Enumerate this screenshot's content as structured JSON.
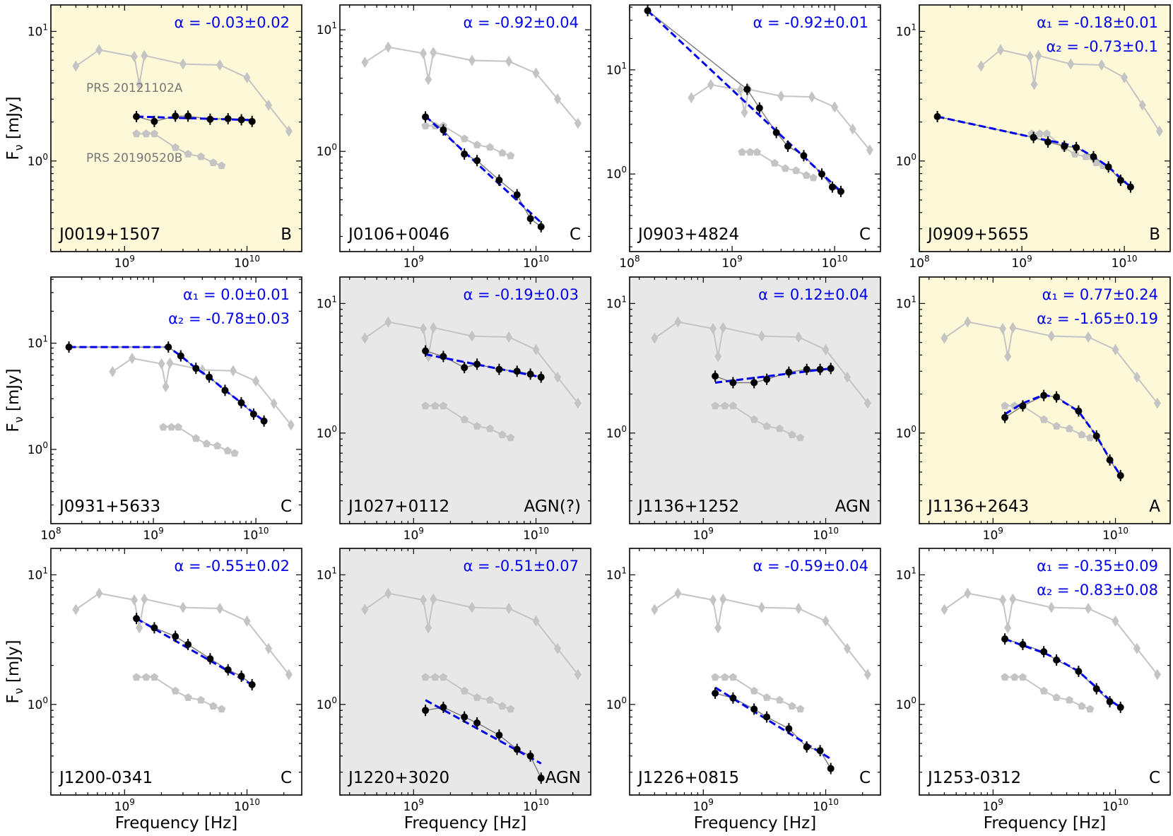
{
  "figure": {
    "xlabel": "Frequency [Hz]",
    "ylabel": "F",
    "ylabel_sub": "ν",
    "ylabel_unit": " [mJy]",
    "prs_labels": [
      "PRS 20121102A",
      "PRS 20190520B"
    ]
  },
  "chart_data": {
    "type": "line",
    "xscale": "log",
    "yscale": "log",
    "xlabel": "Frequency [Hz]",
    "ylabel": "Fν [mJy]",
    "colors": {
      "data": "#000000",
      "fit": "#0000ee",
      "reference": "#c4c4c4",
      "background_yellow": "#fdf8d8",
      "background_gray": "#e8e8e8",
      "background_white": "#ffffff"
    },
    "reference_series": [
      {
        "name": "PRS 20121102A",
        "marker": "diamond",
        "x": [
          400000000.0,
          620000000.0,
          1200000000.0,
          1320000000.0,
          1450000000.0,
          3000000000.0,
          6000000000.0,
          10000000000.0,
          15000000000.0,
          22000000000.0
        ],
        "y": [
          5.4,
          7.2,
          6.4,
          3.9,
          6.5,
          5.6,
          5.5,
          4.4,
          2.7,
          1.7
        ]
      },
      {
        "name": "PRS 20190520B",
        "marker": "pentagon",
        "x": [
          1250000000.0,
          1500000000.0,
          1750000000.0,
          2600000000.0,
          3300000000.0,
          4200000000.0,
          5300000000.0,
          6200000000.0
        ],
        "y": [
          1.62,
          1.62,
          1.62,
          1.27,
          1.13,
          1.08,
          0.97,
          0.92
        ]
      }
    ],
    "panels": [
      {
        "name": "J0019+1507",
        "class": "B",
        "bg": "yellow",
        "xlim": [
          250000000.0,
          28000000000.0
        ],
        "ylim": [
          0.2,
          16
        ],
        "xticks": [
          "10^9",
          "10^10"
        ],
        "yticks": [
          "10^0",
          "10^1"
        ],
        "alpha_lines": [
          "α = -0.03±0.02"
        ],
        "show_prs_names": true,
        "x": [
          1250000000.0,
          1750000000.0,
          2600000000.0,
          3300000000.0,
          5000000000.0,
          7000000000.0,
          9000000000.0,
          11000000000.0
        ],
        "y": [
          2.2,
          2.02,
          2.22,
          2.22,
          2.1,
          2.12,
          2.08,
          2.02
        ],
        "fit": {
          "x": [
            1250000000.0,
            11000000000.0
          ],
          "y": [
            2.2,
            2.07
          ]
        }
      },
      {
        "name": "J0106+0046",
        "class": "C",
        "bg": "white",
        "xlim": [
          250000000.0,
          28000000000.0
        ],
        "ylim": [
          0.15,
          16
        ],
        "xticks": [
          "10^9",
          "10^10"
        ],
        "yticks": [
          "10^0",
          "10^1"
        ],
        "alpha_lines": [
          "α = -0.92±0.04"
        ],
        "show_prs_names": false,
        "x": [
          1250000000.0,
          1750000000.0,
          2600000000.0,
          3300000000.0,
          5000000000.0,
          7000000000.0,
          9000000000.0,
          11000000000.0
        ],
        "y": [
          1.92,
          1.5,
          0.95,
          0.84,
          0.58,
          0.44,
          0.28,
          0.24
        ],
        "fit": {
          "x": [
            1250000000.0,
            11000000000.0
          ],
          "y": [
            1.95,
            0.26
          ]
        }
      },
      {
        "name": "J0903+4824",
        "class": "C",
        "bg": "white",
        "xlim": [
          100000000.0,
          28000000000.0
        ],
        "ylim": [
          0.18,
          42
        ],
        "xticks": [
          "10^8",
          "10^9",
          "10^10"
        ],
        "yticks": [
          "10^0",
          "10^1"
        ],
        "alpha_lines": [
          "α = -0.92±0.01"
        ],
        "show_prs_names": false,
        "x": [
          150000000.0,
          1400000000.0,
          1850000000.0,
          2700000000.0,
          3500000000.0,
          5000000000.0,
          7500000000.0,
          9500000000.0,
          11500000000.0
        ],
        "y": [
          37.0,
          6.5,
          4.3,
          2.5,
          1.85,
          1.5,
          1.0,
          0.75,
          0.68
        ],
        "fit": {
          "x": [
            150000000.0,
            11500000000.0
          ],
          "y": [
            37.0,
            0.68
          ]
        }
      },
      {
        "name": "J0909+5655",
        "class": "B",
        "bg": "yellow",
        "xlim": [
          100000000.0,
          28000000000.0
        ],
        "ylim": [
          0.2,
          16
        ],
        "xticks": [
          "10^8",
          "10^9",
          "10^10"
        ],
        "yticks": [
          "10^0",
          "10^1"
        ],
        "alpha_lines": [
          "α₁ = -0.18±0.01",
          "α₂ = -0.73±0.1"
        ],
        "show_prs_names": false,
        "x": [
          150000000.0,
          1300000000.0,
          1800000000.0,
          2600000000.0,
          3400000000.0,
          5000000000.0,
          7000000000.0,
          9200000000.0,
          11500000000.0
        ],
        "y": [
          2.2,
          1.52,
          1.4,
          1.3,
          1.27,
          1.08,
          0.9,
          0.71,
          0.63
        ],
        "fit": {
          "x": [
            150000000.0,
            1300000000.0,
            1800000000.0,
            2600000000.0,
            3400000000.0,
            5000000000.0,
            7000000000.0,
            9200000000.0,
            11500000000.0
          ],
          "y": [
            2.2,
            1.52,
            1.44,
            1.36,
            1.28,
            1.08,
            0.9,
            0.74,
            0.63
          ]
        }
      },
      {
        "name": "J0931+5633",
        "class": "C",
        "bg": "white",
        "xlim": [
          100000000.0,
          28000000000.0
        ],
        "ylim": [
          0.2,
          42
        ],
        "xticks": [
          "10^8",
          "10^9",
          "10^10"
        ],
        "yticks": [
          "10^0",
          "10^1"
        ],
        "alpha_lines": [
          "α₁ = 0.0±0.01",
          "α₂ = -0.78±0.03"
        ],
        "show_prs_names": false,
        "x": [
          150000000.0,
          1400000000.0,
          1850000000.0,
          2600000000.0,
          3500000000.0,
          5000000000.0,
          7200000000.0,
          9500000000.0,
          12000000000.0
        ],
        "y": [
          9.2,
          9.2,
          7.6,
          5.8,
          4.8,
          3.6,
          2.75,
          2.15,
          1.85
        ],
        "fit": {
          "x": [
            150000000.0,
            1400000000.0,
            1850000000.0,
            2600000000.0,
            3500000000.0,
            5000000000.0,
            7200000000.0,
            9500000000.0,
            12000000000.0
          ],
          "y": [
            9.2,
            9.2,
            7.6,
            5.8,
            4.8,
            3.6,
            2.75,
            2.2,
            1.85
          ]
        }
      },
      {
        "name": "J1027+0112",
        "class": "AGN(?)",
        "bg": "gray",
        "xlim": [
          250000000.0,
          28000000000.0
        ],
        "ylim": [
          0.2,
          16
        ],
        "xticks": [
          "10^9",
          "10^10"
        ],
        "yticks": [
          "10^0",
          "10^1"
        ],
        "alpha_lines": [
          "α = -0.19±0.03"
        ],
        "show_prs_names": false,
        "x": [
          1250000000.0,
          1750000000.0,
          2600000000.0,
          3300000000.0,
          5000000000.0,
          7000000000.0,
          9000000000.0,
          11000000000.0
        ],
        "y": [
          4.3,
          3.9,
          3.2,
          3.4,
          3.1,
          3.0,
          2.85,
          2.7
        ],
        "fit": {
          "x": [
            1250000000.0,
            11000000000.0
          ],
          "y": [
            4.05,
            2.7
          ]
        }
      },
      {
        "name": "J1136+1252",
        "class": "AGN",
        "bg": "gray",
        "xlim": [
          250000000.0,
          28000000000.0
        ],
        "ylim": [
          0.2,
          16
        ],
        "xticks": [
          "10^9",
          "10^10"
        ],
        "yticks": [
          "10^0",
          "10^1"
        ],
        "alpha_lines": [
          "α = 0.12±0.04"
        ],
        "show_prs_names": false,
        "x": [
          1250000000.0,
          1750000000.0,
          2600000000.0,
          3300000000.0,
          5000000000.0,
          7000000000.0,
          9000000000.0,
          11000000000.0
        ],
        "y": [
          2.75,
          2.45,
          2.45,
          2.6,
          2.95,
          3.1,
          3.1,
          3.15
        ],
        "fit": {
          "x": [
            1250000000.0,
            11000000000.0
          ],
          "y": [
            2.45,
            3.15
          ]
        }
      },
      {
        "name": "J1136+2643",
        "class": "A",
        "bg": "yellow",
        "xlim": [
          250000000.0,
          28000000000.0
        ],
        "ylim": [
          0.2,
          16
        ],
        "xticks": [
          "10^9",
          "10^10"
        ],
        "yticks": [
          "10^0",
          "10^1"
        ],
        "alpha_lines": [
          "α₁ = 0.77±0.24",
          "α₂ = -1.65±0.19"
        ],
        "show_prs_names": false,
        "x": [
          1250000000.0,
          1750000000.0,
          2600000000.0,
          3300000000.0,
          5000000000.0,
          7000000000.0,
          9000000000.0,
          11000000000.0
        ],
        "y": [
          1.32,
          1.62,
          1.95,
          1.9,
          1.48,
          0.95,
          0.62,
          0.47
        ],
        "fit": {
          "x": [
            1250000000.0,
            1750000000.0,
            2600000000.0,
            3300000000.0,
            5000000000.0,
            7000000000.0,
            9000000000.0,
            11000000000.0
          ],
          "y": [
            1.4,
            1.7,
            1.97,
            1.88,
            1.47,
            0.95,
            0.63,
            0.47
          ]
        }
      },
      {
        "name": "J1200-0341",
        "class": "C",
        "bg": "white",
        "xlim": [
          250000000.0,
          28000000000.0
        ],
        "ylim": [
          0.2,
          16
        ],
        "xticks": [
          "10^9",
          "10^10"
        ],
        "yticks": [
          "10^0",
          "10^1"
        ],
        "alpha_lines": [
          "α = -0.55±0.02"
        ],
        "show_prs_names": false,
        "x": [
          1250000000.0,
          1750000000.0,
          2600000000.0,
          3300000000.0,
          5000000000.0,
          7000000000.0,
          9000000000.0,
          11000000000.0
        ],
        "y": [
          4.6,
          3.9,
          3.35,
          2.9,
          2.25,
          1.85,
          1.65,
          1.42
        ],
        "fit": {
          "x": [
            1250000000.0,
            11000000000.0
          ],
          "y": [
            4.6,
            1.42
          ]
        }
      },
      {
        "name": "J1220+3020",
        "class": "AGN",
        "bg": "gray",
        "xlim": [
          250000000.0,
          28000000000.0
        ],
        "ylim": [
          0.2,
          16
        ],
        "xticks": [
          "10^9",
          "10^10"
        ],
        "yticks": [
          "10^0",
          "10^1"
        ],
        "alpha_lines": [
          "α = -0.51±0.07"
        ],
        "show_prs_names": false,
        "x": [
          1250000000.0,
          1750000000.0,
          2600000000.0,
          3300000000.0,
          5000000000.0,
          7000000000.0,
          9000000000.0,
          11000000000.0
        ],
        "y": [
          0.9,
          0.95,
          0.8,
          0.72,
          0.58,
          0.45,
          0.4,
          0.27
        ],
        "fit": {
          "x": [
            1250000000.0,
            11000000000.0
          ],
          "y": [
            1.08,
            0.35
          ]
        }
      },
      {
        "name": "J1226+0815",
        "class": "C",
        "bg": "white",
        "xlim": [
          250000000.0,
          28000000000.0
        ],
        "ylim": [
          0.2,
          16
        ],
        "xticks": [
          "10^9",
          "10^10"
        ],
        "yticks": [
          "10^0",
          "10^1"
        ],
        "alpha_lines": [
          "α = -0.59±0.04"
        ],
        "show_prs_names": false,
        "x": [
          1250000000.0,
          1750000000.0,
          2600000000.0,
          3300000000.0,
          5000000000.0,
          7000000000.0,
          9000000000.0,
          11000000000.0
        ],
        "y": [
          1.22,
          1.12,
          0.92,
          0.8,
          0.65,
          0.47,
          0.44,
          0.32
        ],
        "fit": {
          "x": [
            1250000000.0,
            11000000000.0
          ],
          "y": [
            1.35,
            0.38
          ]
        }
      },
      {
        "name": "J1253-0312",
        "class": "C",
        "bg": "white",
        "xlim": [
          250000000.0,
          28000000000.0
        ],
        "ylim": [
          0.2,
          16
        ],
        "xticks": [
          "10^9",
          "10^10"
        ],
        "yticks": [
          "10^0",
          "10^1"
        ],
        "alpha_lines": [
          "α₁ = -0.35±0.09",
          "α₂ = -0.83±0.08"
        ],
        "show_prs_names": false,
        "x": [
          1250000000.0,
          1750000000.0,
          2600000000.0,
          3300000000.0,
          5000000000.0,
          7000000000.0,
          9000000000.0,
          11000000000.0
        ],
        "y": [
          3.2,
          2.9,
          2.55,
          2.2,
          1.8,
          1.32,
          1.05,
          0.95
        ],
        "fit": {
          "x": [
            1250000000.0,
            1750000000.0,
            2600000000.0,
            3300000000.0,
            5000000000.0,
            7000000000.0,
            9000000000.0,
            11000000000.0
          ],
          "y": [
            3.2,
            2.85,
            2.5,
            2.25,
            1.8,
            1.35,
            1.08,
            0.95
          ]
        }
      }
    ]
  }
}
